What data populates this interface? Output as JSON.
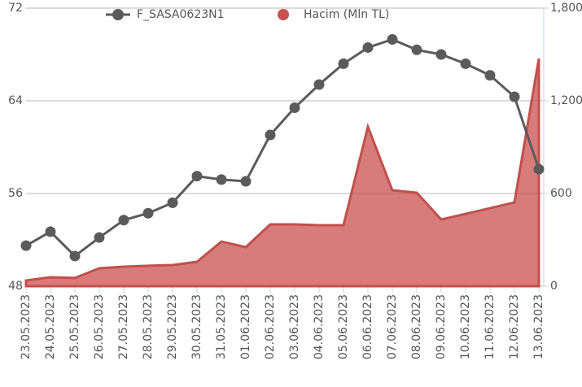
{
  "chart_data": {
    "type": "line-area",
    "categories": [
      "23.05.2023",
      "24.05.2023",
      "25.05.2023",
      "26.05.2023",
      "27.05.2023",
      "28.05.2023",
      "29.05.2023",
      "30.05.2023",
      "31.05.2023",
      "01.06.2023",
      "02.06.2023",
      "03.06.2023",
      "04.06.2023",
      "05.06.2023",
      "06.06.2023",
      "07.06.2023",
      "08.06.2023",
      "09.06.2023",
      "10.06.2023",
      "11.06.2023",
      "12.06.2023",
      "13.06.2023"
    ],
    "series": [
      {
        "name": "F_SASA0623N1",
        "color": "#5b5b5b",
        "kind": "line",
        "values": [
          51.5,
          52.7,
          50.6,
          52.2,
          53.7,
          54.3,
          55.2,
          57.5,
          57.2,
          57.05,
          61.05,
          63.4,
          65.4,
          67.2,
          68.6,
          69.3,
          68.4,
          68.0,
          67.2,
          66.2,
          64.35,
          58.1
        ]
      },
      {
        "name": "Hacim (Mln TL)",
        "color": "#c9504f",
        "kind": "area",
        "axis": "y2",
        "values": [
          37,
          58,
          53,
          116,
          126,
          132,
          137,
          158,
          289,
          253,
          400,
          400,
          395,
          395,
          1032,
          621,
          605,
          432,
          468,
          505,
          542,
          1474
        ]
      }
    ],
    "ylim": [
      48,
      72
    ],
    "yticks": [
      48,
      56,
      64,
      72
    ],
    "y2lim": [
      0,
      1800
    ],
    "y2ticks": [
      0,
      600,
      {
        "value": 1200,
        "label": "1,200"
      },
      {
        "value": 1800,
        "label": "1,800"
      }
    ],
    "grid": true
  }
}
